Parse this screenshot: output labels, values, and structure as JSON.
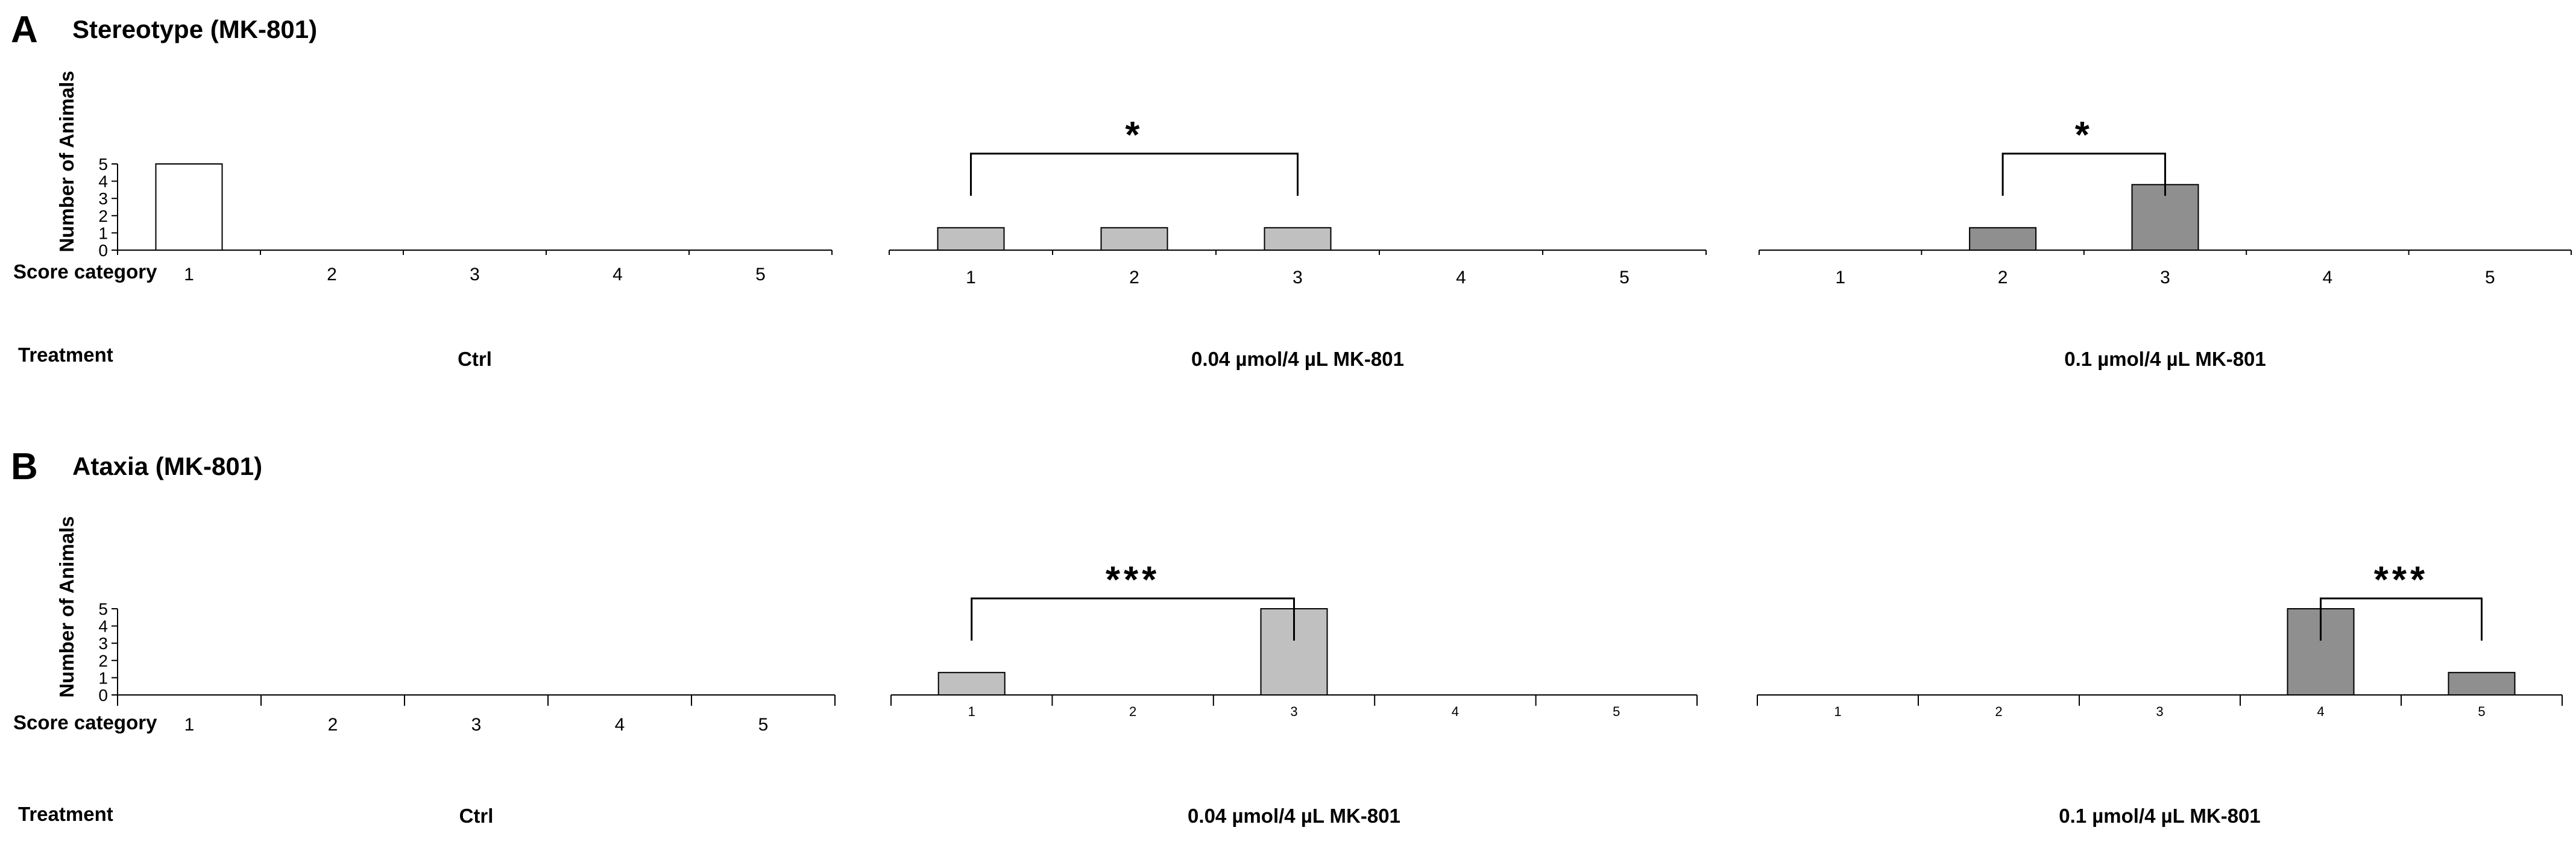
{
  "colors": {
    "ctrl_fill": "#ffffff",
    "low_dose_fill": "#c0c0c0",
    "high_dose_fill": "#8f8f8f",
    "stroke": "#000000"
  },
  "panels": [
    {
      "letter": "A",
      "title": "Stereotype (MK-801)",
      "y_axis_label": "Number of Animals",
      "score_label": "Score category",
      "treatment_label": "Treatment",
      "significance": [
        "*",
        "*"
      ]
    },
    {
      "letter": "B",
      "title": "Ataxia (MK-801)",
      "y_axis_label": "Number of Animals",
      "score_label": "Score category",
      "treatment_label": "Treatment",
      "significance": [
        "***",
        "***"
      ]
    }
  ],
  "chart_data": [
    {
      "type": "bar",
      "panel": "A",
      "treatment": "Ctrl",
      "categories": [
        "1",
        "2",
        "3",
        "4",
        "5"
      ],
      "values": [
        5,
        0,
        0,
        0,
        0
      ],
      "ylim": [
        0,
        5
      ],
      "yticks": [
        "0",
        "1",
        "2",
        "3",
        "4",
        "5"
      ]
    },
    {
      "type": "bar",
      "panel": "A",
      "treatment": "0.04 µmol/4 µL MK-801",
      "categories": [
        "1",
        "2",
        "3",
        "4",
        "5"
      ],
      "values": [
        1.3,
        1.3,
        1.3,
        0,
        0
      ],
      "ylim": [
        0,
        5
      ],
      "significance": {
        "label": "*",
        "from": "1",
        "to": "3"
      }
    },
    {
      "type": "bar",
      "panel": "A",
      "treatment": "0.1 µmol/4 µL MK-801",
      "categories": [
        "1",
        "2",
        "3",
        "4",
        "5"
      ],
      "values": [
        0,
        1.3,
        3.8,
        0,
        0
      ],
      "ylim": [
        0,
        5
      ],
      "significance": {
        "label": "*",
        "from": "2",
        "to": "3"
      }
    },
    {
      "type": "bar",
      "panel": "B",
      "treatment": "Ctrl",
      "categories": [
        "1",
        "2",
        "3",
        "4",
        "5"
      ],
      "values": [
        0,
        0,
        0,
        0,
        0
      ],
      "ylim": [
        0,
        5
      ],
      "yticks": [
        "0",
        "1",
        "2",
        "3",
        "4",
        "5"
      ]
    },
    {
      "type": "bar",
      "panel": "B",
      "treatment": "0.04 µmol/4 µL MK-801",
      "categories": [
        "1",
        "2",
        "3",
        "4",
        "5"
      ],
      "values": [
        1.3,
        0,
        5,
        0,
        0
      ],
      "ylim": [
        0,
        5
      ],
      "significance": {
        "label": "***",
        "from": "1",
        "to": "3"
      }
    },
    {
      "type": "bar",
      "panel": "B",
      "treatment": "0.1 µmol/4 µL MK-801",
      "categories": [
        "1",
        "2",
        "3",
        "4",
        "5"
      ],
      "values": [
        0,
        0,
        0,
        5,
        1.3
      ],
      "ylim": [
        0,
        5
      ],
      "significance": {
        "label": "***",
        "from": "4",
        "to": "5"
      }
    }
  ]
}
